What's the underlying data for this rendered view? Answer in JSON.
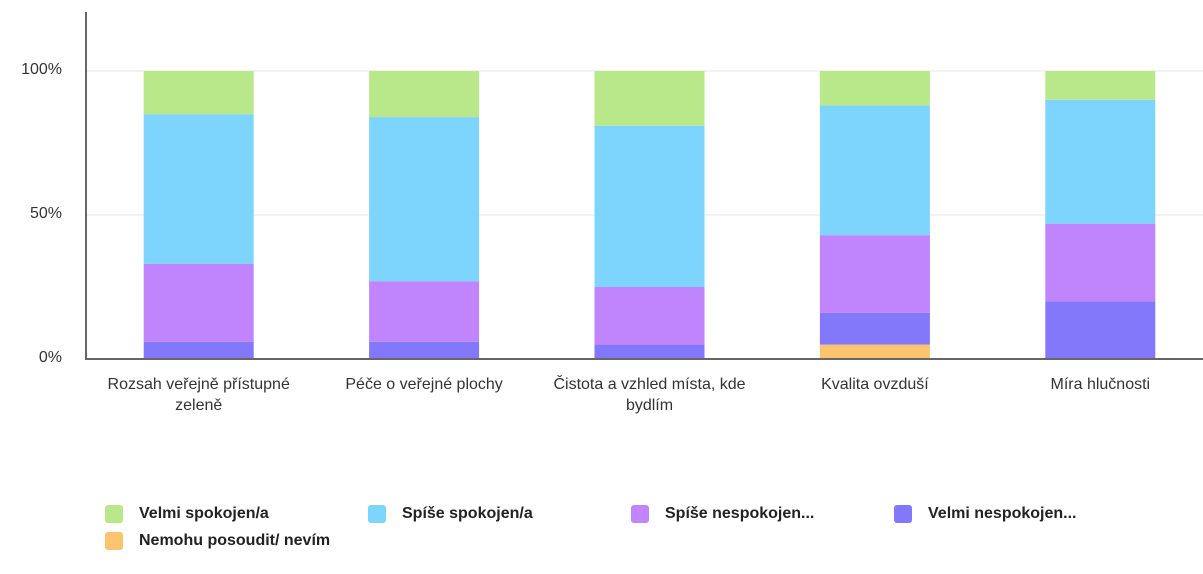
{
  "chart_data": {
    "type": "stacked_bar",
    "categories": [
      "Rozsah veřejně přístupné zeleně",
      "Péče o veřejné plochy",
      "Čistota a vzhled místa, kde bydlím",
      "Kvalita ovzduší",
      "Míra hlučnosti"
    ],
    "series": [
      {
        "name": "Velmi spokojen/a",
        "color": "#b9e88a",
        "values": [
          15,
          16,
          19,
          12,
          10
        ]
      },
      {
        "name": "Spíše spokojen/a",
        "color": "#7dd4fc",
        "values": [
          52,
          57,
          56,
          45,
          43
        ]
      },
      {
        "name": "Spíše nespokojen...",
        "color": "#c084fc",
        "values": [
          27,
          21,
          20,
          27,
          27
        ]
      },
      {
        "name": "Velmi nespokojen...",
        "color": "#8478fa",
        "values": [
          6,
          6,
          5,
          11,
          20
        ]
      },
      {
        "name": "Nemohu posoudit/ nevím",
        "color": "#fdc470",
        "values": [
          0,
          0,
          0,
          5,
          0
        ]
      }
    ],
    "ylim": [
      0,
      100
    ],
    "yticks": [
      {
        "value": 0,
        "label": "0%"
      },
      {
        "value": 50,
        "label": "50%"
      },
      {
        "value": 100,
        "label": "100%"
      }
    ],
    "grid": true
  }
}
